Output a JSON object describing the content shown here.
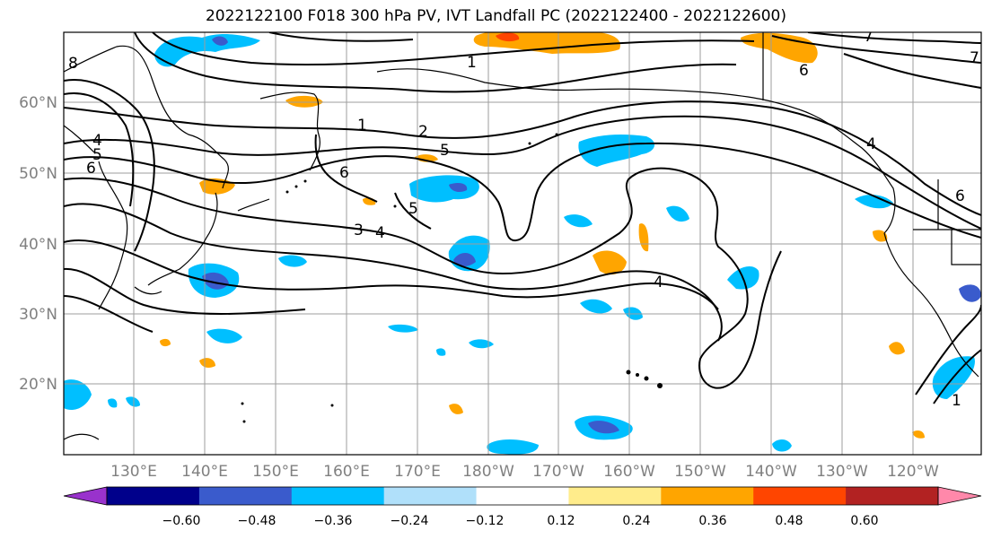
{
  "title": "2022122100 F018 300 hPa PV, IVT Landfall PC (2022122400 - 2022122600)",
  "lat_labels": [
    "60°N",
    "50°N",
    "40°N",
    "30°N",
    "20°N"
  ],
  "lon_labels": [
    "130°E",
    "140°E",
    "150°E",
    "160°E",
    "170°E",
    "180°W",
    "170°W",
    "160°W",
    "150°W",
    "140°W",
    "130°W",
    "120°W"
  ],
  "colorbar": {
    "labels": [
      "−0.60",
      "−0.48",
      "−0.36",
      "−0.24",
      "−0.12",
      "0.12",
      "0.24",
      "0.36",
      "0.48",
      "0.60"
    ],
    "colors": [
      "#9932cc",
      "#00008b",
      "#3a5bcc",
      "#00bfff",
      "#b0e0fa",
      "#ffffff",
      "#ffec8b",
      "#ffa500",
      "#ff4500",
      "#b22222",
      "#ff88aa"
    ]
  },
  "contour_labels": [
    {
      "text": "4"
    },
    {
      "text": "5"
    },
    {
      "text": "6"
    },
    {
      "text": "1"
    },
    {
      "text": "2"
    },
    {
      "text": "5"
    },
    {
      "text": "6"
    },
    {
      "text": "3"
    },
    {
      "text": "4"
    },
    {
      "text": "5"
    },
    {
      "text": "4"
    },
    {
      "text": "1"
    },
    {
      "text": "6"
    },
    {
      "text": "4"
    },
    {
      "text": "6"
    },
    {
      "text": "7"
    },
    {
      "text": "8"
    },
    {
      "text": "1"
    },
    {
      "text": "7"
    }
  ]
}
